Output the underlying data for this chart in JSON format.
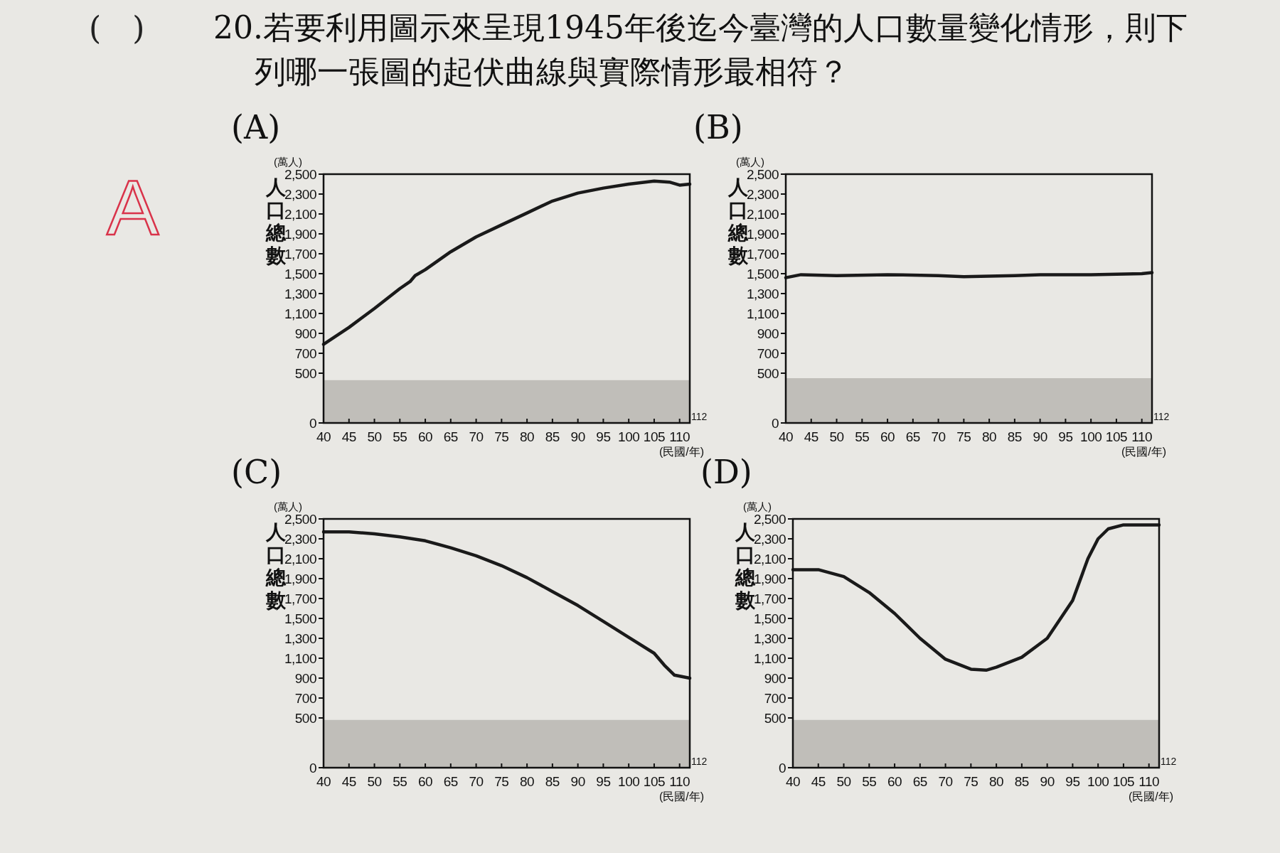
{
  "chart_data": [
    {
      "type": "other",
      "title": "20.若要利用圖示來呈現1945年後迄今臺灣的人口數量變化情形，則下列哪一張圖的起伏曲線與實際情形最相符？",
      "annotations": [
        "(　)",
        "A"
      ]
    },
    {
      "type": "line",
      "title": "(A)",
      "xlabel": "(民國/年)",
      "ylabel": "人口總數",
      "annotations": [
        "(萬人)",
        "112"
      ],
      "x": [
        40,
        45,
        50,
        55,
        57,
        58,
        60,
        65,
        70,
        75,
        80,
        85,
        90,
        95,
        100,
        105,
        108,
        110,
        112
      ],
      "series": [
        {
          "color": "#1a1a1a",
          "values": [
            790,
            960,
            1150,
            1350,
            1420,
            1480,
            1540,
            1720,
            1870,
            1990,
            2110,
            2230,
            2310,
            2360,
            2400,
            2430,
            2420,
            2390,
            2400
          ]
        }
      ],
      "xlim": [
        40,
        112
      ],
      "xticks": [
        40,
        45,
        50,
        55,
        60,
        65,
        70,
        75,
        80,
        85,
        90,
        95,
        100,
        105,
        110
      ],
      "ylim": [
        0,
        2500
      ],
      "yticks": [
        0,
        500,
        700,
        900,
        {
          "value": 1100,
          "label": "1,100"
        },
        {
          "value": 1300,
          "label": "1,300"
        },
        {
          "value": 1500,
          "label": "1,500"
        },
        {
          "value": 1700,
          "label": "1,700"
        },
        {
          "value": 1900,
          "label": "1,900"
        },
        {
          "value": 2100,
          "label": "2,100"
        },
        {
          "value": 2300,
          "label": "2,300"
        },
        {
          "value": 2500,
          "label": "2,500"
        }
      ],
      "bands": [
        {
          "axis": "y",
          "from": 0,
          "to": 430,
          "color": "#b5b3ae"
        }
      ],
      "grid": false
    },
    {
      "type": "line",
      "title": "(B)",
      "xlabel": "(民國/年)",
      "ylabel": "人口總數",
      "annotations": [
        "(萬人)",
        "112"
      ],
      "x": [
        40,
        43,
        50,
        60,
        70,
        75,
        80,
        85,
        90,
        100,
        110,
        112
      ],
      "series": [
        {
          "color": "#1a1a1a",
          "values": [
            1460,
            1490,
            1480,
            1490,
            1480,
            1470,
            1475,
            1480,
            1490,
            1490,
            1500,
            1510
          ]
        }
      ],
      "xlim": [
        40,
        112
      ],
      "xticks": [
        40,
        45,
        50,
        55,
        60,
        65,
        70,
        75,
        80,
        85,
        90,
        95,
        100,
        105,
        110
      ],
      "ylim": [
        0,
        2500
      ],
      "yticks": [
        0,
        500,
        700,
        900,
        {
          "value": 1100,
          "label": "1,100"
        },
        {
          "value": 1300,
          "label": "1,300"
        },
        {
          "value": 1500,
          "label": "1,500"
        },
        {
          "value": 1700,
          "label": "1,700"
        },
        {
          "value": 1900,
          "label": "1,900"
        },
        {
          "value": 2100,
          "label": "2,100"
        },
        {
          "value": 2300,
          "label": "2,300"
        },
        {
          "value": 2500,
          "label": "2,500"
        }
      ],
      "bands": [
        {
          "axis": "y",
          "from": 0,
          "to": 450,
          "color": "#b5b3ae"
        }
      ],
      "grid": false
    },
    {
      "type": "line",
      "title": "(C)",
      "xlabel": "(民國/年)",
      "ylabel": "人口總數",
      "annotations": [
        "(萬人)",
        "112"
      ],
      "x": [
        40,
        45,
        50,
        55,
        60,
        65,
        70,
        75,
        80,
        85,
        90,
        95,
        100,
        105,
        107,
        109,
        112
      ],
      "series": [
        {
          "color": "#1a1a1a",
          "values": [
            2370,
            2370,
            2350,
            2320,
            2280,
            2210,
            2130,
            2030,
            1910,
            1770,
            1630,
            1470,
            1310,
            1150,
            1030,
            930,
            900
          ]
        }
      ],
      "xlim": [
        40,
        112
      ],
      "xticks": [
        40,
        45,
        50,
        55,
        60,
        65,
        70,
        75,
        80,
        85,
        90,
        95,
        100,
        105,
        110
      ],
      "ylim": [
        0,
        2500
      ],
      "yticks": [
        0,
        500,
        700,
        900,
        {
          "value": 1100,
          "label": "1,100"
        },
        {
          "value": 1300,
          "label": "1,300"
        },
        {
          "value": 1500,
          "label": "1,500"
        },
        {
          "value": 1700,
          "label": "1,700"
        },
        {
          "value": 1900,
          "label": "1,900"
        },
        {
          "value": 2100,
          "label": "2,100"
        },
        {
          "value": 2300,
          "label": "2,300"
        },
        {
          "value": 2500,
          "label": "2,500"
        }
      ],
      "bands": [
        {
          "axis": "y",
          "from": 0,
          "to": 480,
          "color": "#b5b3ae"
        }
      ],
      "grid": false
    },
    {
      "type": "line",
      "title": "(D)",
      "xlabel": "(民國/年)",
      "ylabel": "人口總數",
      "annotations": [
        "(萬人)",
        "112"
      ],
      "x": [
        40,
        45,
        50,
        55,
        60,
        65,
        70,
        75,
        78,
        80,
        85,
        90,
        95,
        98,
        100,
        102,
        105,
        112
      ],
      "series": [
        {
          "color": "#1a1a1a",
          "values": [
            1990,
            1990,
            1920,
            1760,
            1550,
            1300,
            1090,
            990,
            980,
            1010,
            1110,
            1300,
            1680,
            2100,
            2300,
            2400,
            2440,
            2440
          ]
        }
      ],
      "xlim": [
        40,
        112
      ],
      "xticks": [
        40,
        45,
        50,
        55,
        60,
        65,
        70,
        75,
        80,
        85,
        90,
        95,
        100,
        105,
        110
      ],
      "ylim": [
        0,
        2500
      ],
      "yticks": [
        0,
        500,
        700,
        900,
        {
          "value": 1100,
          "label": "1,100"
        },
        {
          "value": 1300,
          "label": "1,300"
        },
        {
          "value": 1500,
          "label": "1,500"
        },
        {
          "value": 1700,
          "label": "1,700"
        },
        {
          "value": 1900,
          "label": "1,900"
        },
        {
          "value": 2100,
          "label": "2,100"
        },
        {
          "value": 2300,
          "label": "2,300"
        },
        {
          "value": 2500,
          "label": "2,500"
        }
      ],
      "bands": [
        {
          "axis": "y",
          "from": 0,
          "to": 480,
          "color": "#b5b3ae"
        }
      ],
      "grid": false
    }
  ]
}
